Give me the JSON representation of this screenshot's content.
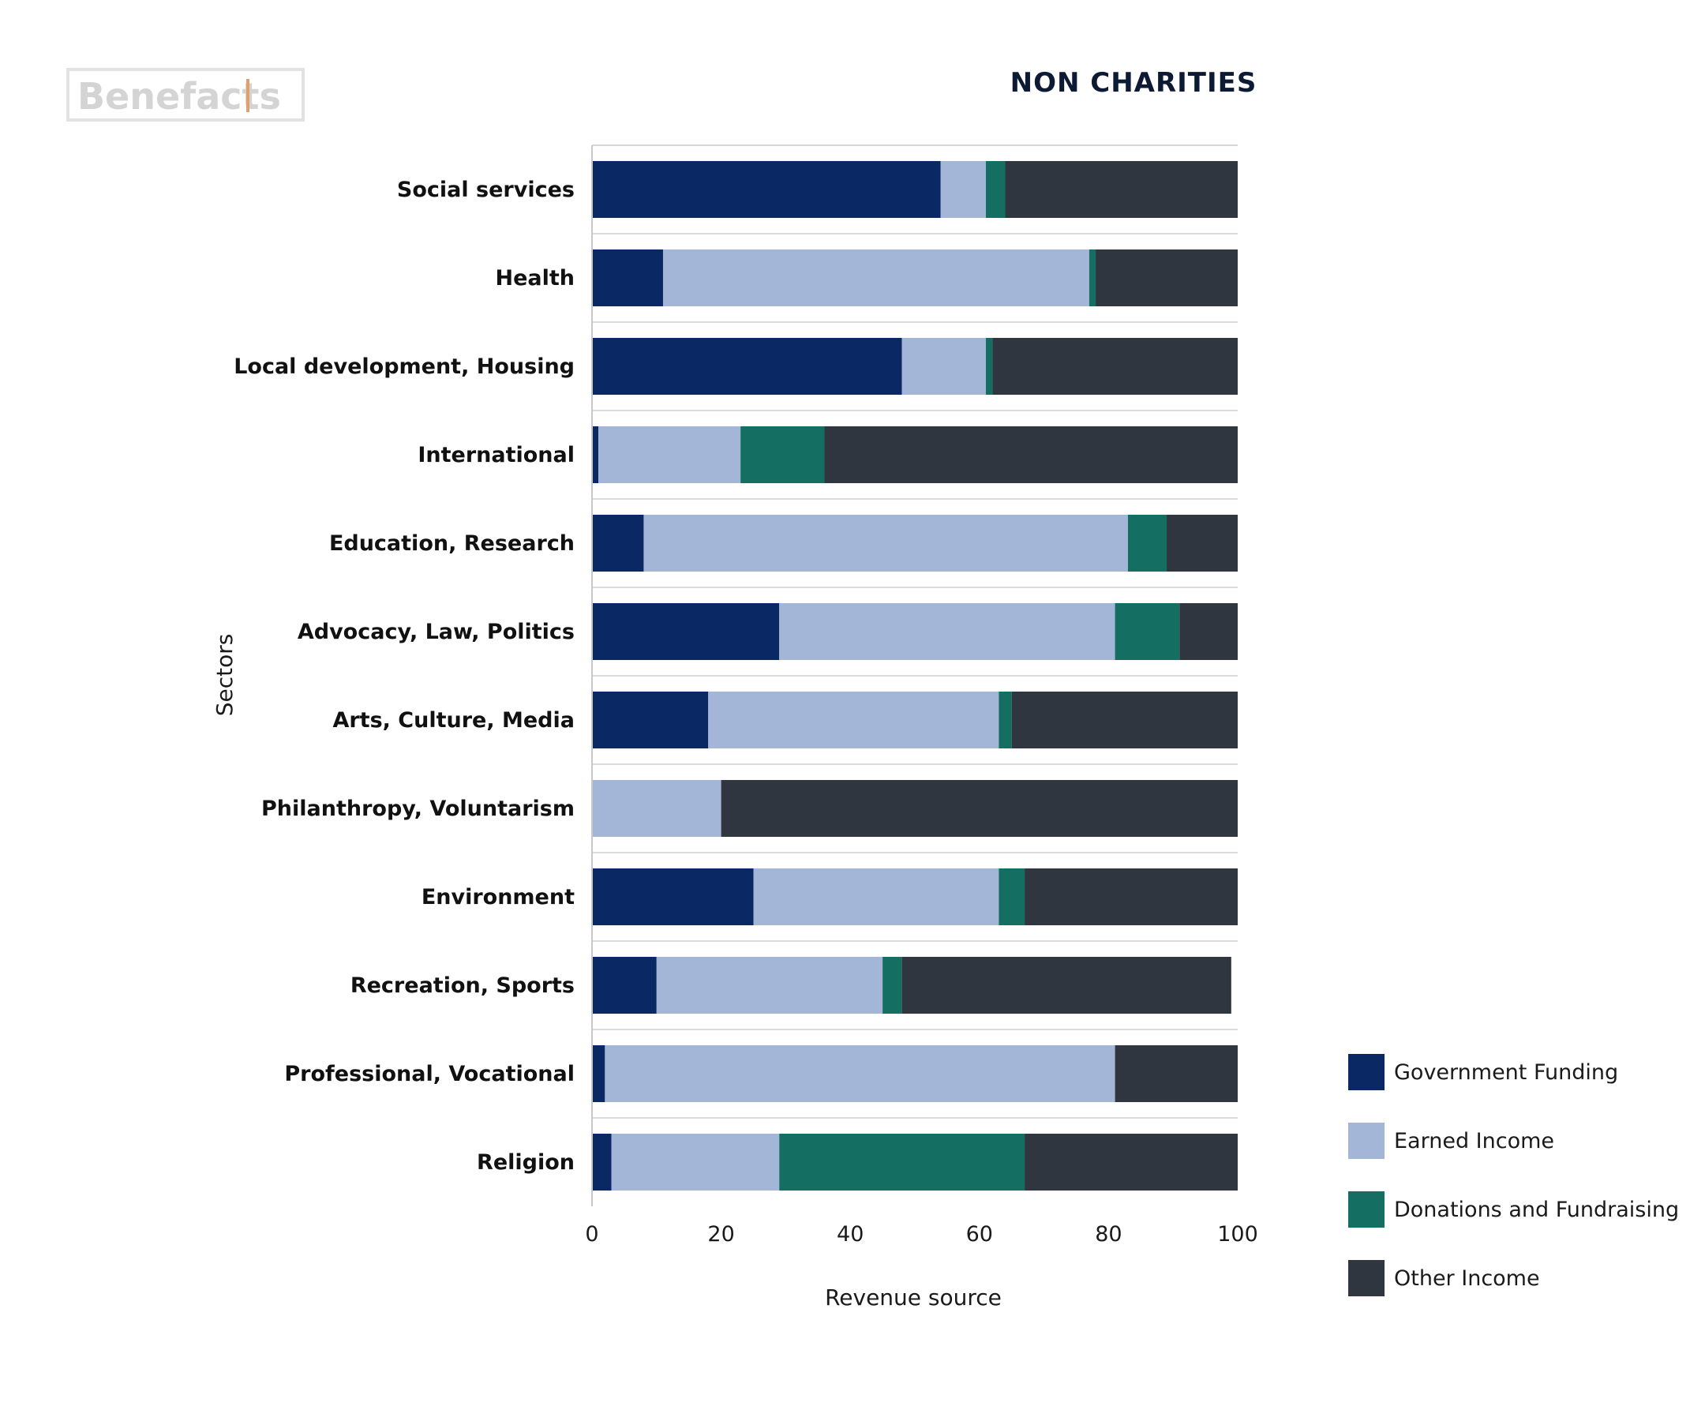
{
  "logo": {
    "text": "Benefacts"
  },
  "chart_data": {
    "type": "bar",
    "orientation": "horizontal",
    "stacked": true,
    "title": "NON CHARITIES",
    "xlabel": "Revenue source",
    "ylabel": "Sectors",
    "xlim": [
      0,
      100
    ],
    "xticks": [
      0,
      20,
      40,
      60,
      80,
      100
    ],
    "grid": "horizontal separators between categories",
    "legend_position": "right",
    "categories": [
      "Social services",
      "Health",
      "Local development, Housing",
      "International",
      "Education, Research",
      "Advocacy, Law, Politics",
      "Arts, Culture, Media",
      "Philanthropy, Voluntarism",
      "Environment",
      "Recreation, Sports",
      "Professional, Vocational",
      "Religion"
    ],
    "series": [
      {
        "name": "Government Funding",
        "color": "#0a2863",
        "values": [
          54,
          11,
          48,
          1,
          8,
          29,
          18,
          0,
          25,
          10,
          2,
          3
        ]
      },
      {
        "name": "Earned Income",
        "color": "#a3b6d8",
        "values": [
          7,
          66,
          13,
          22,
          75,
          52,
          45,
          20,
          38,
          35,
          79,
          26
        ]
      },
      {
        "name": "Donations and Fundraising",
        "color": "#146e62",
        "values": [
          3,
          1,
          1,
          13,
          6,
          10,
          2,
          0,
          4,
          3,
          0,
          38
        ]
      },
      {
        "name": "Other Income",
        "color": "#2f3640",
        "values": [
          36,
          22,
          38,
          64,
          11,
          9,
          35,
          80,
          33,
          51,
          19,
          33
        ]
      }
    ]
  }
}
